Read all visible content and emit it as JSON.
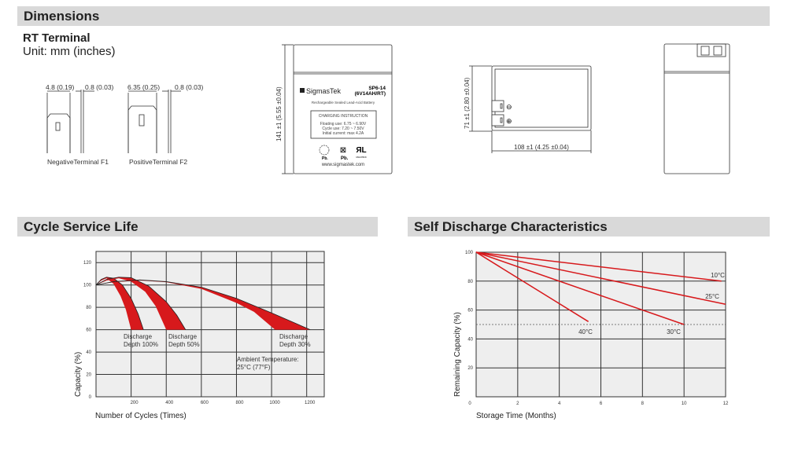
{
  "sections": {
    "dimensions": "Dimensions",
    "cycle": "Cycle Service Life",
    "self_discharge": "Self Discharge Characteristics"
  },
  "terminal": {
    "title": "RT Terminal",
    "unit": "Unit: mm (inches)",
    "neg_width": "4.8 (0.19)",
    "neg_thick": "0.8 (0.03)",
    "pos_width": "6.35 (0.25)",
    "pos_thick": "0.8 (0.03)",
    "neg_label": "NegativeTerminal F1",
    "pos_label": "PositiveTerminal F2"
  },
  "battery": {
    "height_dim": "141 ±1 (5.55 ±0.04)",
    "brand": "SigmasTek",
    "model": "SP6-14",
    "model_spec": "(6V14AH/RT)",
    "type": "Rechargeable Sealed Lead-Acid Battery",
    "charging_title": "CHARGING INSTRUCTION",
    "floating": "Floating use: 6.75 ~ 6.90V",
    "cycle_use": "Cycle use: 7.20 ~ 7.50V",
    "initial": "Initial current: max 4.2A",
    "pb1": "Pb.",
    "pb2": "Pb.",
    "ul_code": "MH47829",
    "website": "www.sigmastek.com",
    "depth_dim": "71 ±1 (2.80 ±0.04)",
    "length_dim": "108 ±1 (4.25 ±0.04)",
    "minus": "⊖",
    "plus": "⊕"
  },
  "chart_data": [
    {
      "type": "area",
      "title": "Cycle Service Life",
      "xlabel": "Number of Cycles (Times)",
      "ylabel": "Capacity (%)",
      "xlim": [
        0,
        1300
      ],
      "ylim": [
        0,
        130
      ],
      "grid": true,
      "xticks": [
        "200",
        "400",
        "600",
        "800",
        "1000",
        "1200"
      ],
      "yticks": [
        "0",
        "20",
        "40",
        "60",
        "80",
        "100",
        "120"
      ],
      "series": [
        {
          "name": "Discharge Depth 100%",
          "upper": [
            [
              0,
              100
            ],
            [
              30,
              105
            ],
            [
              60,
              107
            ],
            [
              100,
              106
            ],
            [
              150,
              100
            ],
            [
              200,
              88
            ],
            [
              240,
              74
            ],
            [
              270,
              60
            ]
          ],
          "lower": [
            [
              0,
              100
            ],
            [
              30,
              104
            ],
            [
              60,
              106
            ],
            [
              100,
              101
            ],
            [
              140,
              90
            ],
            [
              170,
              78
            ],
            [
              200,
              60
            ]
          ]
        },
        {
          "name": "Discharge Depth 50%",
          "upper": [
            [
              0,
              100
            ],
            [
              60,
              105
            ],
            [
              130,
              107
            ],
            [
              200,
              106.5
            ],
            [
              300,
              99
            ],
            [
              400,
              85
            ],
            [
              460,
              73
            ],
            [
              510,
              60
            ]
          ],
          "lower": [
            [
              0,
              100
            ],
            [
              60,
              104
            ],
            [
              130,
              106
            ],
            [
              200,
              103
            ],
            [
              280,
              94
            ],
            [
              340,
              81
            ],
            [
              400,
              60
            ]
          ]
        },
        {
          "name": "Discharge Depth 30%",
          "upper": [
            [
              0,
              100
            ],
            [
              100,
              103
            ],
            [
              250,
              104.5
            ],
            [
              400,
              103
            ],
            [
              600,
              98
            ],
            [
              800,
              88
            ],
            [
              1000,
              75
            ],
            [
              1220,
              60
            ]
          ],
          "lower": [
            [
              0,
              100
            ],
            [
              100,
              102.5
            ],
            [
              250,
              104
            ],
            [
              400,
              102.5
            ],
            [
              600,
              96.5
            ],
            [
              800,
              84
            ],
            [
              900,
              76
            ],
            [
              1020,
              60
            ]
          ]
        }
      ],
      "labels": [
        {
          "l1": "Discharge",
          "l2": "Depth 100%"
        },
        {
          "l1": "Discharge",
          "l2": "Depth 50%"
        },
        {
          "l1": "Discharge",
          "l2": "Depth 30%"
        }
      ],
      "annotation": {
        "l1": "Ambient Temperature:",
        "l2": "25°C (77°F)"
      },
      "color": "#d7191c"
    },
    {
      "type": "line",
      "title": "Self Discharge Characteristics",
      "xlabel": "Storage Time (Months)",
      "ylabel": "Remaining Capacity (%)",
      "xlim": [
        0,
        12
      ],
      "ylim": [
        0,
        100
      ],
      "grid": true,
      "xticks": [
        "0",
        "2",
        "4",
        "6",
        "8",
        "10",
        "12"
      ],
      "yticks": [
        "20",
        "40",
        "60",
        "80",
        "100"
      ],
      "reference_line": 50,
      "series": [
        {
          "name": "10°C",
          "x": [
            0,
            11.8
          ],
          "y": [
            100,
            80
          ]
        },
        {
          "name": "25°C",
          "x": [
            0,
            12
          ],
          "y": [
            100,
            64
          ]
        },
        {
          "name": "30°C",
          "x": [
            0,
            10
          ],
          "y": [
            100,
            50
          ]
        },
        {
          "name": "40°C",
          "x": [
            0,
            5.4
          ],
          "y": [
            100,
            52
          ]
        }
      ],
      "color": "#d7191c"
    }
  ]
}
